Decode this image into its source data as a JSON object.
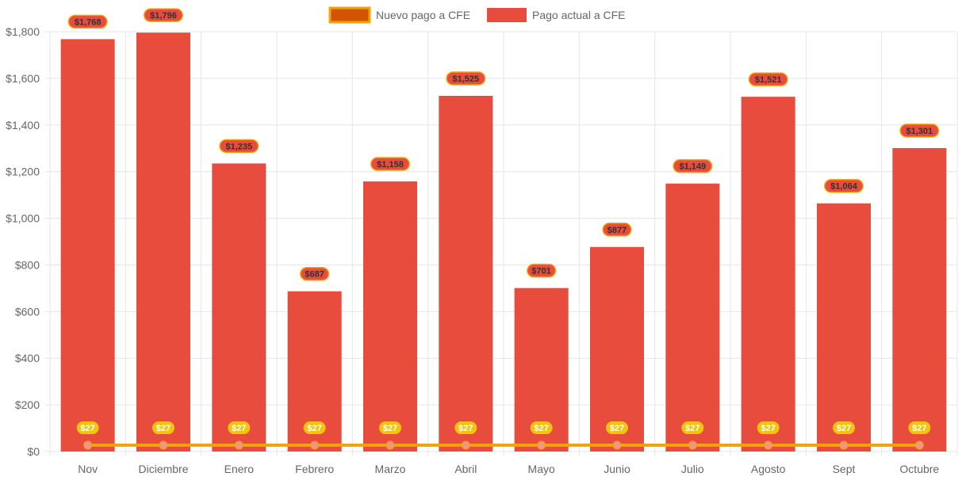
{
  "chart_data": {
    "type": "bar",
    "categories": [
      "Nov",
      "Diciembre",
      "Enero",
      "Febrero",
      "Marzo",
      "Abril",
      "Mayo",
      "Junio",
      "Julio",
      "Agosto",
      "Sept",
      "Octubre"
    ],
    "series": [
      {
        "name": "Nuevo pago a CFE",
        "kind": "line",
        "values": [
          27,
          27,
          27,
          27,
          27,
          27,
          27,
          27,
          27,
          27,
          27,
          27
        ],
        "labels": [
          "$27",
          "$27",
          "$27",
          "$27",
          "$27",
          "$27",
          "$27",
          "$27",
          "$27",
          "$27",
          "$27",
          "$27"
        ],
        "color": "#f0a30a",
        "legend_fill": "#d35400"
      },
      {
        "name": "Pago actual a CFE",
        "kind": "bar",
        "values": [
          1768,
          1796,
          1235,
          687,
          1158,
          1525,
          701,
          877,
          1149,
          1521,
          1064,
          1301
        ],
        "labels": [
          "$1,768",
          "$1,796",
          "$1,235",
          "$687",
          "$1,158",
          "$1,525",
          "$701",
          "$877",
          "$1,149",
          "$1,521",
          "$1,064",
          "$1,301"
        ],
        "color": "#e74c3c"
      }
    ],
    "y_ticks": [
      0,
      200,
      400,
      600,
      800,
      1000,
      1200,
      1400,
      1600,
      1800
    ],
    "y_tick_labels": [
      "$0",
      "$200",
      "$400",
      "$600",
      "$800",
      "$1,000",
      "$1,200",
      "$1,400",
      "$1,600",
      "$1,800"
    ],
    "ylim": [
      0,
      1800
    ],
    "title": "",
    "xlabel": "",
    "ylabel": "",
    "grid": true,
    "legend": "top-center",
    "colors": {
      "grid": "#e6e6e6",
      "tick_text": "#666666",
      "bar_label_bg": "#e74c3c",
      "bar_label_border": "#f0a30a",
      "line_label_bg": "#f1c40f",
      "line_point": "#f1948a"
    }
  }
}
